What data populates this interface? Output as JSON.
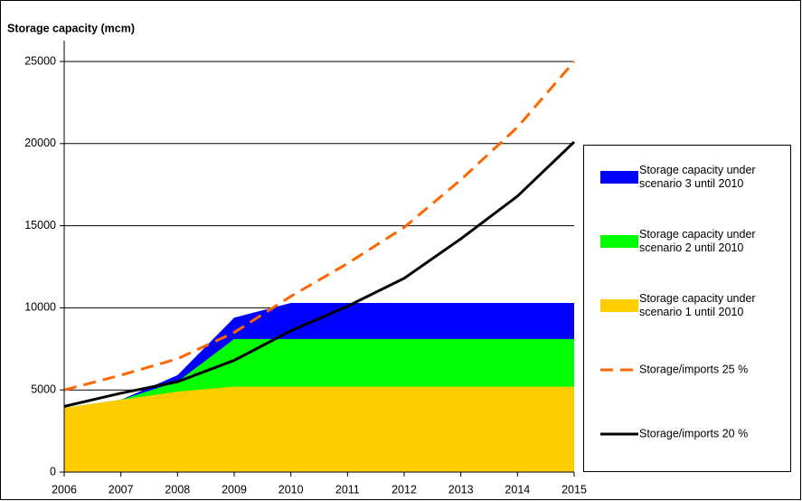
{
  "chart_data": {
    "type": "area",
    "title": "Storage capacity (mcm)",
    "x": [
      2006,
      2007,
      2008,
      2009,
      2010,
      2011,
      2012,
      2013,
      2014,
      2015
    ],
    "xlim": [
      2006,
      2015
    ],
    "xticks": [
      2006,
      2007,
      2008,
      2009,
      2010,
      2011,
      2012,
      2013,
      2014,
      2015
    ],
    "ylim": [
      0,
      25000
    ],
    "yticks": [
      0,
      5000,
      10000,
      15000,
      20000,
      25000
    ],
    "grid": true,
    "legend": "right",
    "series": [
      {
        "name": "Storage capacity under scenario 3 until 2010",
        "type": "area",
        "color": "#0000ff",
        "values": [
          3900,
          4400,
          5900,
          9400,
          10300,
          10300,
          10300,
          10300,
          10300,
          10300
        ]
      },
      {
        "name": "Storage capacity under scenario 2 until 2010",
        "type": "area",
        "color": "#00ff00",
        "values": [
          3900,
          4400,
          5500,
          8100,
          8100,
          8100,
          8100,
          8100,
          8100,
          8100
        ]
      },
      {
        "name": "Storage capacity under scenario 1 until 2010",
        "type": "area",
        "color": "#ffcc00",
        "values": [
          3900,
          4400,
          4900,
          5200,
          5200,
          5200,
          5200,
          5200,
          5200,
          5200
        ]
      },
      {
        "name": "Storage/imports 25 %",
        "type": "line",
        "dashed": true,
        "color": "#ff6600",
        "values": [
          5000,
          5900,
          6900,
          8500,
          10700,
          12700,
          14900,
          17800,
          21000,
          25000
        ]
      },
      {
        "name": "Storage/imports 20 %",
        "type": "line",
        "dashed": false,
        "color": "#000000",
        "values": [
          4000,
          4800,
          5500,
          6800,
          8600,
          10100,
          11800,
          14200,
          16800,
          20100
        ]
      }
    ]
  }
}
